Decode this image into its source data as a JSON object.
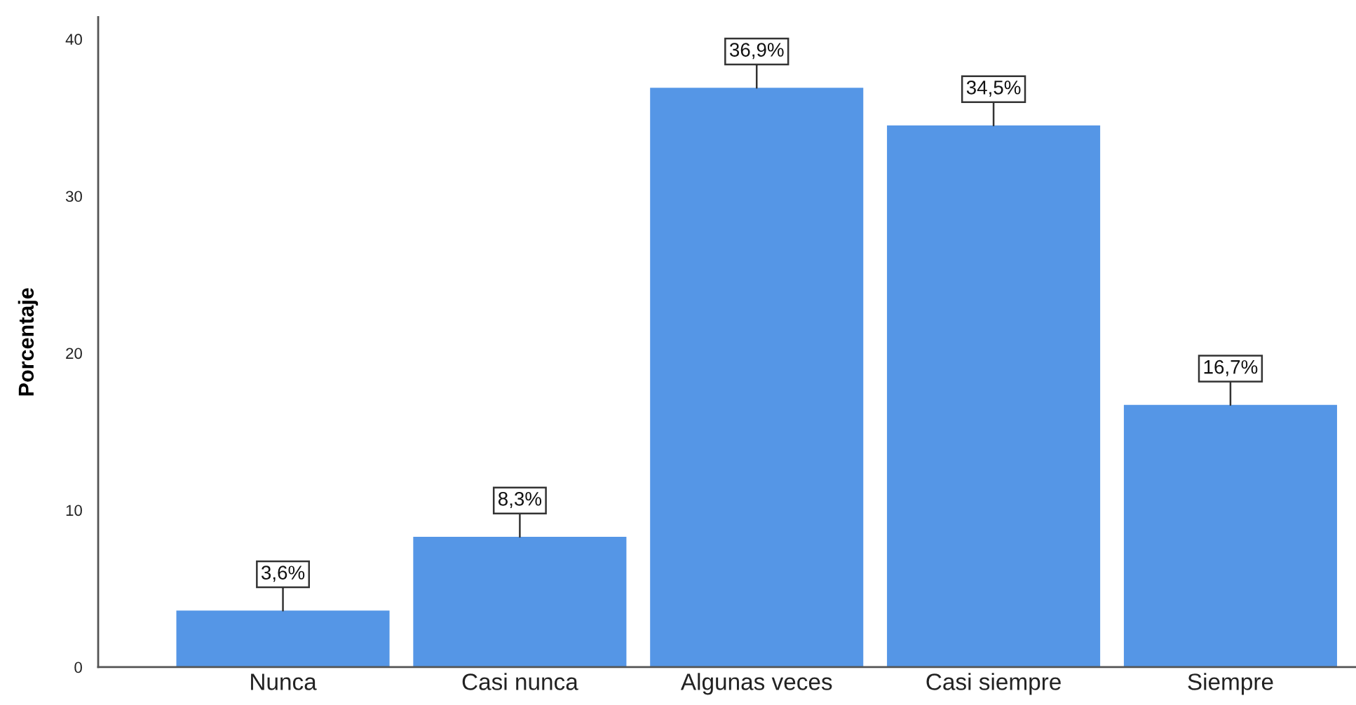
{
  "chart_data": {
    "type": "bar",
    "ylabel": "Porcentaje",
    "categories": [
      "Nunca",
      "Casi nunca",
      "Algunas veces",
      "Casi siempre",
      "Siempre"
    ],
    "values": [
      3.6,
      8.3,
      36.9,
      34.5,
      16.7
    ],
    "color": "#5596e6",
    "value_labels": [
      "3,6%",
      "8,3%",
      "36,9%",
      "34,5%",
      "16,7%"
    ],
    "ylim": [
      0,
      41.4
    ],
    "yticks": [
      0,
      10,
      20,
      30,
      40
    ],
    "grid": false
  }
}
